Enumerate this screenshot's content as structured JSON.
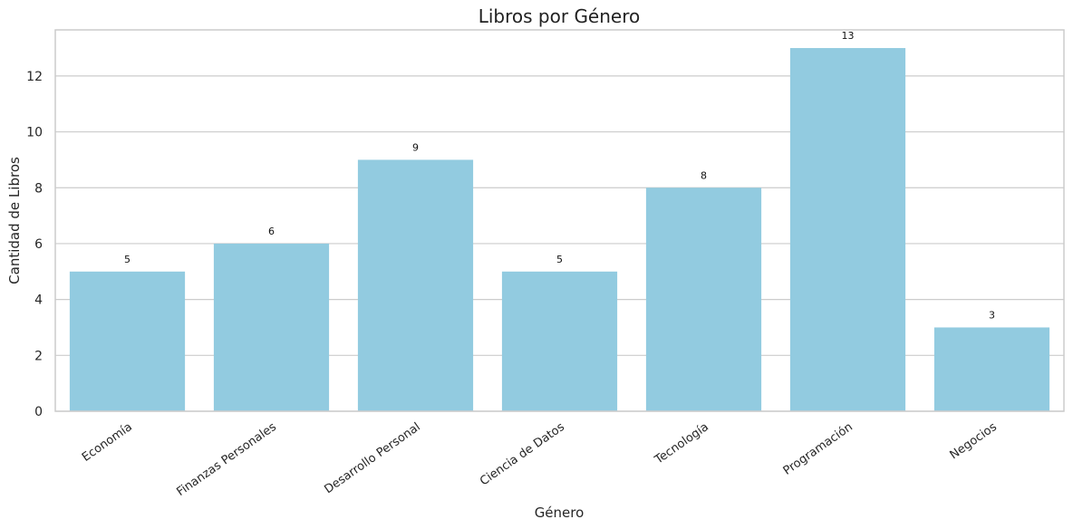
{
  "chart_data": {
    "type": "bar",
    "title": "Libros por Género",
    "xlabel": "Género",
    "ylabel": "Cantidad de Libros",
    "categories": [
      "Economía",
      "Finanzas Personales",
      "Desarrollo Personal",
      "Ciencia de Datos",
      "Tecnología",
      "Programación",
      "Negocios"
    ],
    "values": [
      5,
      6,
      9,
      5,
      8,
      13,
      3
    ],
    "data_labels": [
      "5",
      "6",
      "9",
      "5",
      "8",
      "13",
      "3"
    ],
    "yticks": [
      0,
      2,
      4,
      6,
      8,
      10,
      12
    ],
    "ylim": [
      0,
      13.65
    ],
    "grid": "horizontal",
    "bar_color": "#92cbe0",
    "grid_color": "#cccccc"
  }
}
